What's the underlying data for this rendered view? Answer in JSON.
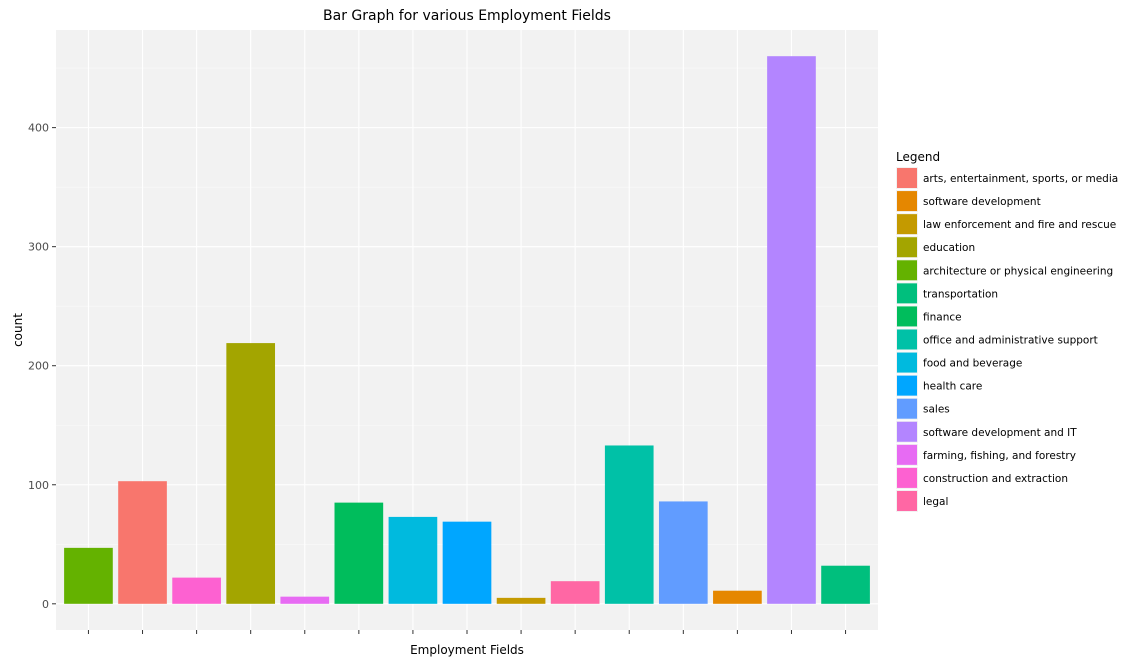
{
  "chart_data": {
    "type": "bar",
    "title": "Bar Graph for various Employment Fields",
    "xlabel": "Employment Fields",
    "ylabel": "count",
    "ylim": [
      -22,
      482
    ],
    "yticks": [
      0,
      100,
      200,
      300,
      400
    ],
    "grid": true,
    "legend_title": "Legend",
    "legend_position": "right",
    "categories": [
      "architecture or physical engineering",
      "arts, entertainment, sports, or media",
      "construction and extraction",
      "education",
      "farming, fishing, and forestry",
      "finance",
      "food and beverage",
      "health care",
      "law enforcement and fire and rescue",
      "legal",
      "office and administrative support",
      "sales",
      "software development",
      "software development and IT",
      "transportation"
    ],
    "values": [
      47,
      103,
      22,
      219,
      6,
      85,
      73,
      69,
      5,
      19,
      133,
      86,
      11,
      460,
      32
    ],
    "colors": [
      "#64B200",
      "#F8766D",
      "#FD61D1",
      "#A3A500",
      "#E76BF3",
      "#00BD5C",
      "#00BADE",
      "#00A6FF",
      "#C49A00",
      "#FF67A4",
      "#00C1A7",
      "#619CFF",
      "#E58700",
      "#B385FF",
      "#00BF7D"
    ],
    "legend": [
      {
        "label": "arts, entertainment, sports, or media",
        "color": "#F8766D"
      },
      {
        "label": "software development",
        "color": "#E58700"
      },
      {
        "label": "law enforcement and fire and rescue",
        "color": "#C49A00"
      },
      {
        "label": "education",
        "color": "#A3A500"
      },
      {
        "label": "architecture or physical engineering",
        "color": "#64B200"
      },
      {
        "label": "transportation",
        "color": "#00BF7D"
      },
      {
        "label": "finance",
        "color": "#00BD5C"
      },
      {
        "label": "office and administrative support",
        "color": "#00C1A7"
      },
      {
        "label": "food and beverage",
        "color": "#00BADE"
      },
      {
        "label": "health care",
        "color": "#00A6FF"
      },
      {
        "label": "sales",
        "color": "#619CFF"
      },
      {
        "label": "software development and IT",
        "color": "#B385FF"
      },
      {
        "label": "farming, fishing, and forestry",
        "color": "#E76BF3"
      },
      {
        "label": "construction and extraction",
        "color": "#FD61D1"
      },
      {
        "label": "legal",
        "color": "#FF67A4"
      }
    ]
  }
}
